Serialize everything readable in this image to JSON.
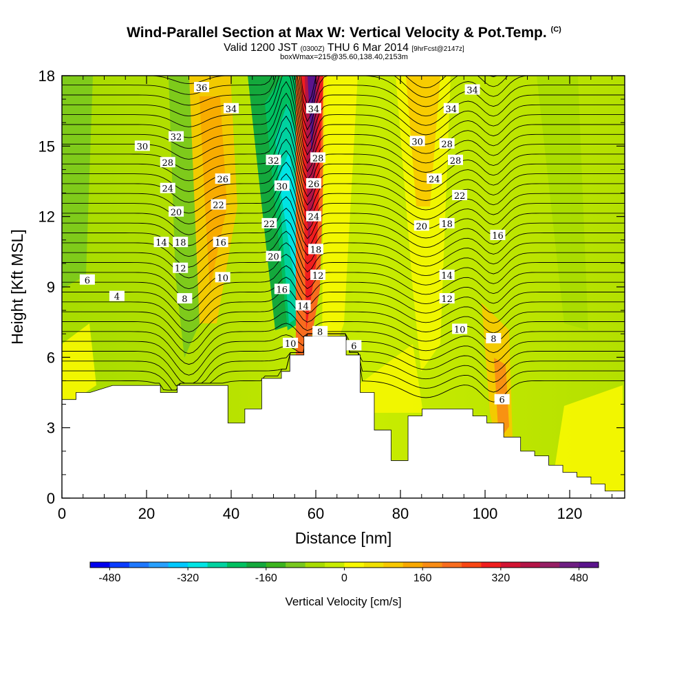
{
  "header": {
    "title": "Wind-Parallel Section at Max W: Vertical Velocity & Pot.Temp.",
    "title_mark": "(C)",
    "valid_prefix": "Valid 1200 JST",
    "valid_utc": "(0300Z)",
    "valid_date": "THU 6 Mar 2014",
    "forecast_tag": "[9hrFcst@2147z]",
    "box_info": "boxWmax=215@35.60,138.40,2153m"
  },
  "chart_data": {
    "type": "heatmap",
    "title": "Wind-Parallel Section at Max W: Vertical Velocity & Pot.Temp.",
    "xlabel": "Distance [nm]",
    "ylabel": "Height [Kft MSL]",
    "xlim": [
      0,
      133
    ],
    "ylim": [
      0,
      18
    ],
    "x_ticks": [
      "0",
      "20",
      "40",
      "60",
      "80",
      "100",
      "120"
    ],
    "y_ticks": [
      "0",
      "3",
      "6",
      "9",
      "12",
      "15",
      "18"
    ],
    "colorbar": {
      "label": "Vertical Velocity [cm/s]",
      "ticks": [
        "-480",
        "-320",
        "-160",
        "0",
        "160",
        "320",
        "480"
      ],
      "range": [
        -520,
        520
      ],
      "interval": 40,
      "colors": [
        "#0000ee",
        "#0a3cff",
        "#1e78ff",
        "#28a0ff",
        "#00c8ff",
        "#00e4e4",
        "#00d2a0",
        "#00c060",
        "#14a83c",
        "#3cb41e",
        "#78c81e",
        "#a8dc00",
        "#c8ec00",
        "#f8f800",
        "#f0e000",
        "#f8c800",
        "#f8a800",
        "#f88c14",
        "#f86c1e",
        "#f84614",
        "#f01e1e",
        "#d21432",
        "#b41446",
        "#961e64",
        "#6e1e82",
        "#5a148c"
      ]
    },
    "theta_contour_labels": [
      "4",
      "6",
      "8",
      "10",
      "12",
      "14",
      "16",
      "18",
      "20",
      "22",
      "24",
      "26",
      "28",
      "30",
      "32",
      "34",
      "36"
    ],
    "terrain_kft": [
      [
        0,
        4.2
      ],
      [
        5,
        4.2
      ],
      [
        5,
        4.5
      ],
      [
        10,
        4.5
      ],
      [
        10,
        4.5
      ],
      [
        18,
        4.8
      ],
      [
        35,
        4.8
      ],
      [
        35,
        4.5
      ],
      [
        41,
        4.5
      ],
      [
        41,
        4.8
      ],
      [
        59,
        4.8
      ],
      [
        59,
        3.2
      ],
      [
        65,
        3.2
      ],
      [
        65,
        3.8
      ],
      [
        71,
        3.8
      ],
      [
        71,
        5.1
      ],
      [
        78,
        5.1
      ],
      [
        78,
        5.4
      ],
      [
        81,
        5.4
      ],
      [
        81,
        6.1
      ],
      [
        86,
        6.1
      ],
      [
        86,
        6.9
      ],
      [
        96,
        6.9
      ],
      [
        96,
        6.9
      ],
      [
        101,
        6.9
      ],
      [
        101,
        6.1
      ],
      [
        106,
        6.1
      ],
      [
        106,
        4.5
      ],
      [
        111,
        4.5
      ],
      [
        111,
        2.9
      ],
      [
        117,
        2.9
      ],
      [
        117,
        1.6
      ],
      [
        123,
        1.6
      ],
      [
        123,
        3.5
      ],
      [
        128,
        3.5
      ],
      [
        128,
        3.8
      ],
      [
        136,
        3.8
      ],
      [
        136,
        3.8
      ],
      [
        146,
        3.8
      ],
      [
        146,
        3.5
      ],
      [
        151,
        3.5
      ],
      [
        151,
        3.2
      ],
      [
        157,
        3.2
      ],
      [
        157,
        2.6
      ],
      [
        163,
        2.6
      ],
      [
        163,
        2.0
      ],
      [
        168,
        2.0
      ],
      [
        168,
        1.8
      ],
      [
        173,
        1.8
      ],
      [
        173,
        1.4
      ],
      [
        178,
        1.4
      ],
      [
        178,
        1.1
      ],
      [
        183,
        1.1
      ],
      [
        183,
        0.9
      ],
      [
        188,
        0.9
      ],
      [
        188,
        0.6
      ],
      [
        193,
        0.6
      ],
      [
        193,
        0.3
      ],
      [
        200,
        0.3
      ],
      [
        200,
        0.3
      ]
    ]
  }
}
